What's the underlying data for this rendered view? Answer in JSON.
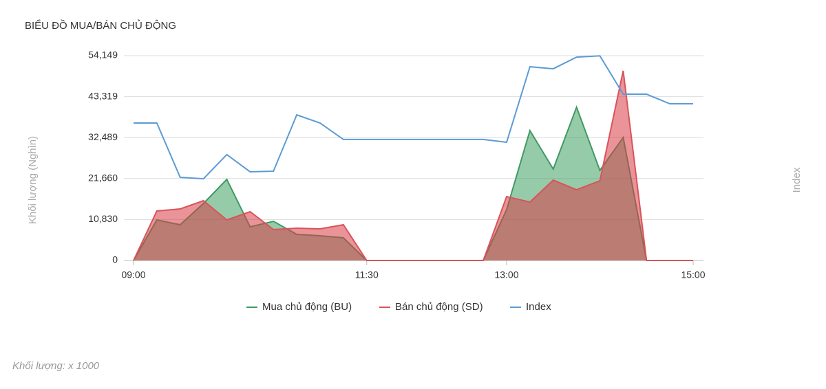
{
  "chart_data": {
    "type": "area",
    "title": "BIỂU ĐỒ MUA/BÁN CHỦ ĐỘNG",
    "y_label": "Khối lượng (Nghìn)",
    "y2_label": "Index",
    "footnote": "Khối lượng: x 1000",
    "x": [
      "09:00",
      "09:15",
      "09:30",
      "09:45",
      "10:00",
      "10:15",
      "10:30",
      "10:45",
      "11:00",
      "11:15",
      "11:30",
      "11:45",
      "12:00",
      "12:15",
      "12:30",
      "12:45",
      "13:00",
      "13:15",
      "13:30",
      "13:45",
      "14:00",
      "14:15",
      "14:30",
      "14:45",
      "15:00"
    ],
    "xlim": [
      "09:00",
      "15:00"
    ],
    "xticks": [
      "09:00",
      "11:30",
      "13:00",
      "15:00"
    ],
    "ylim": [
      0,
      54149
    ],
    "yticks": [
      0,
      {
        "value": 10830,
        "label": "10,830"
      },
      {
        "value": 21660,
        "label": "21,660"
      },
      {
        "value": 32489,
        "label": "32,489"
      },
      {
        "value": 43319,
        "label": "43,319"
      },
      {
        "value": 54149,
        "label": "54,149"
      }
    ],
    "y2lim": [
      0,
      100
    ],
    "grid": true,
    "legend": "bottom",
    "series": [
      {
        "name": "Mua chủ động (BU)",
        "color": "#3f9a62",
        "values": [
          0,
          10720,
          9448,
          15081,
          21441,
          8903,
          10357,
          6905,
          6541,
          5996,
          0,
          0,
          0,
          0,
          0,
          0,
          13446,
          34341,
          24166,
          40519,
          23803,
          32524,
          0,
          0,
          0
        ]
      },
      {
        "name": "Bán chủ động (SD)",
        "color": "#d9535a",
        "values": [
          0,
          13082,
          13628,
          15808,
          10720,
          12901,
          8177,
          8540,
          8358,
          9448,
          0,
          0,
          0,
          0,
          0,
          0,
          16898,
          15445,
          21259,
          18715,
          21077,
          50149,
          0,
          0,
          0
        ]
      },
      {
        "name": "Index",
        "color": "#5b9bd5",
        "axis": "y2",
        "values": [
          67.1,
          67.1,
          40.6,
          39.9,
          51.7,
          43.3,
          43.6,
          71.1,
          67.1,
          59.1,
          59.1,
          59.1,
          59.1,
          59.1,
          59.1,
          59.1,
          57.7,
          94.6,
          93.6,
          99.3,
          99.9,
          81.2,
          81.2,
          76.5,
          76.5
        ]
      }
    ]
  }
}
